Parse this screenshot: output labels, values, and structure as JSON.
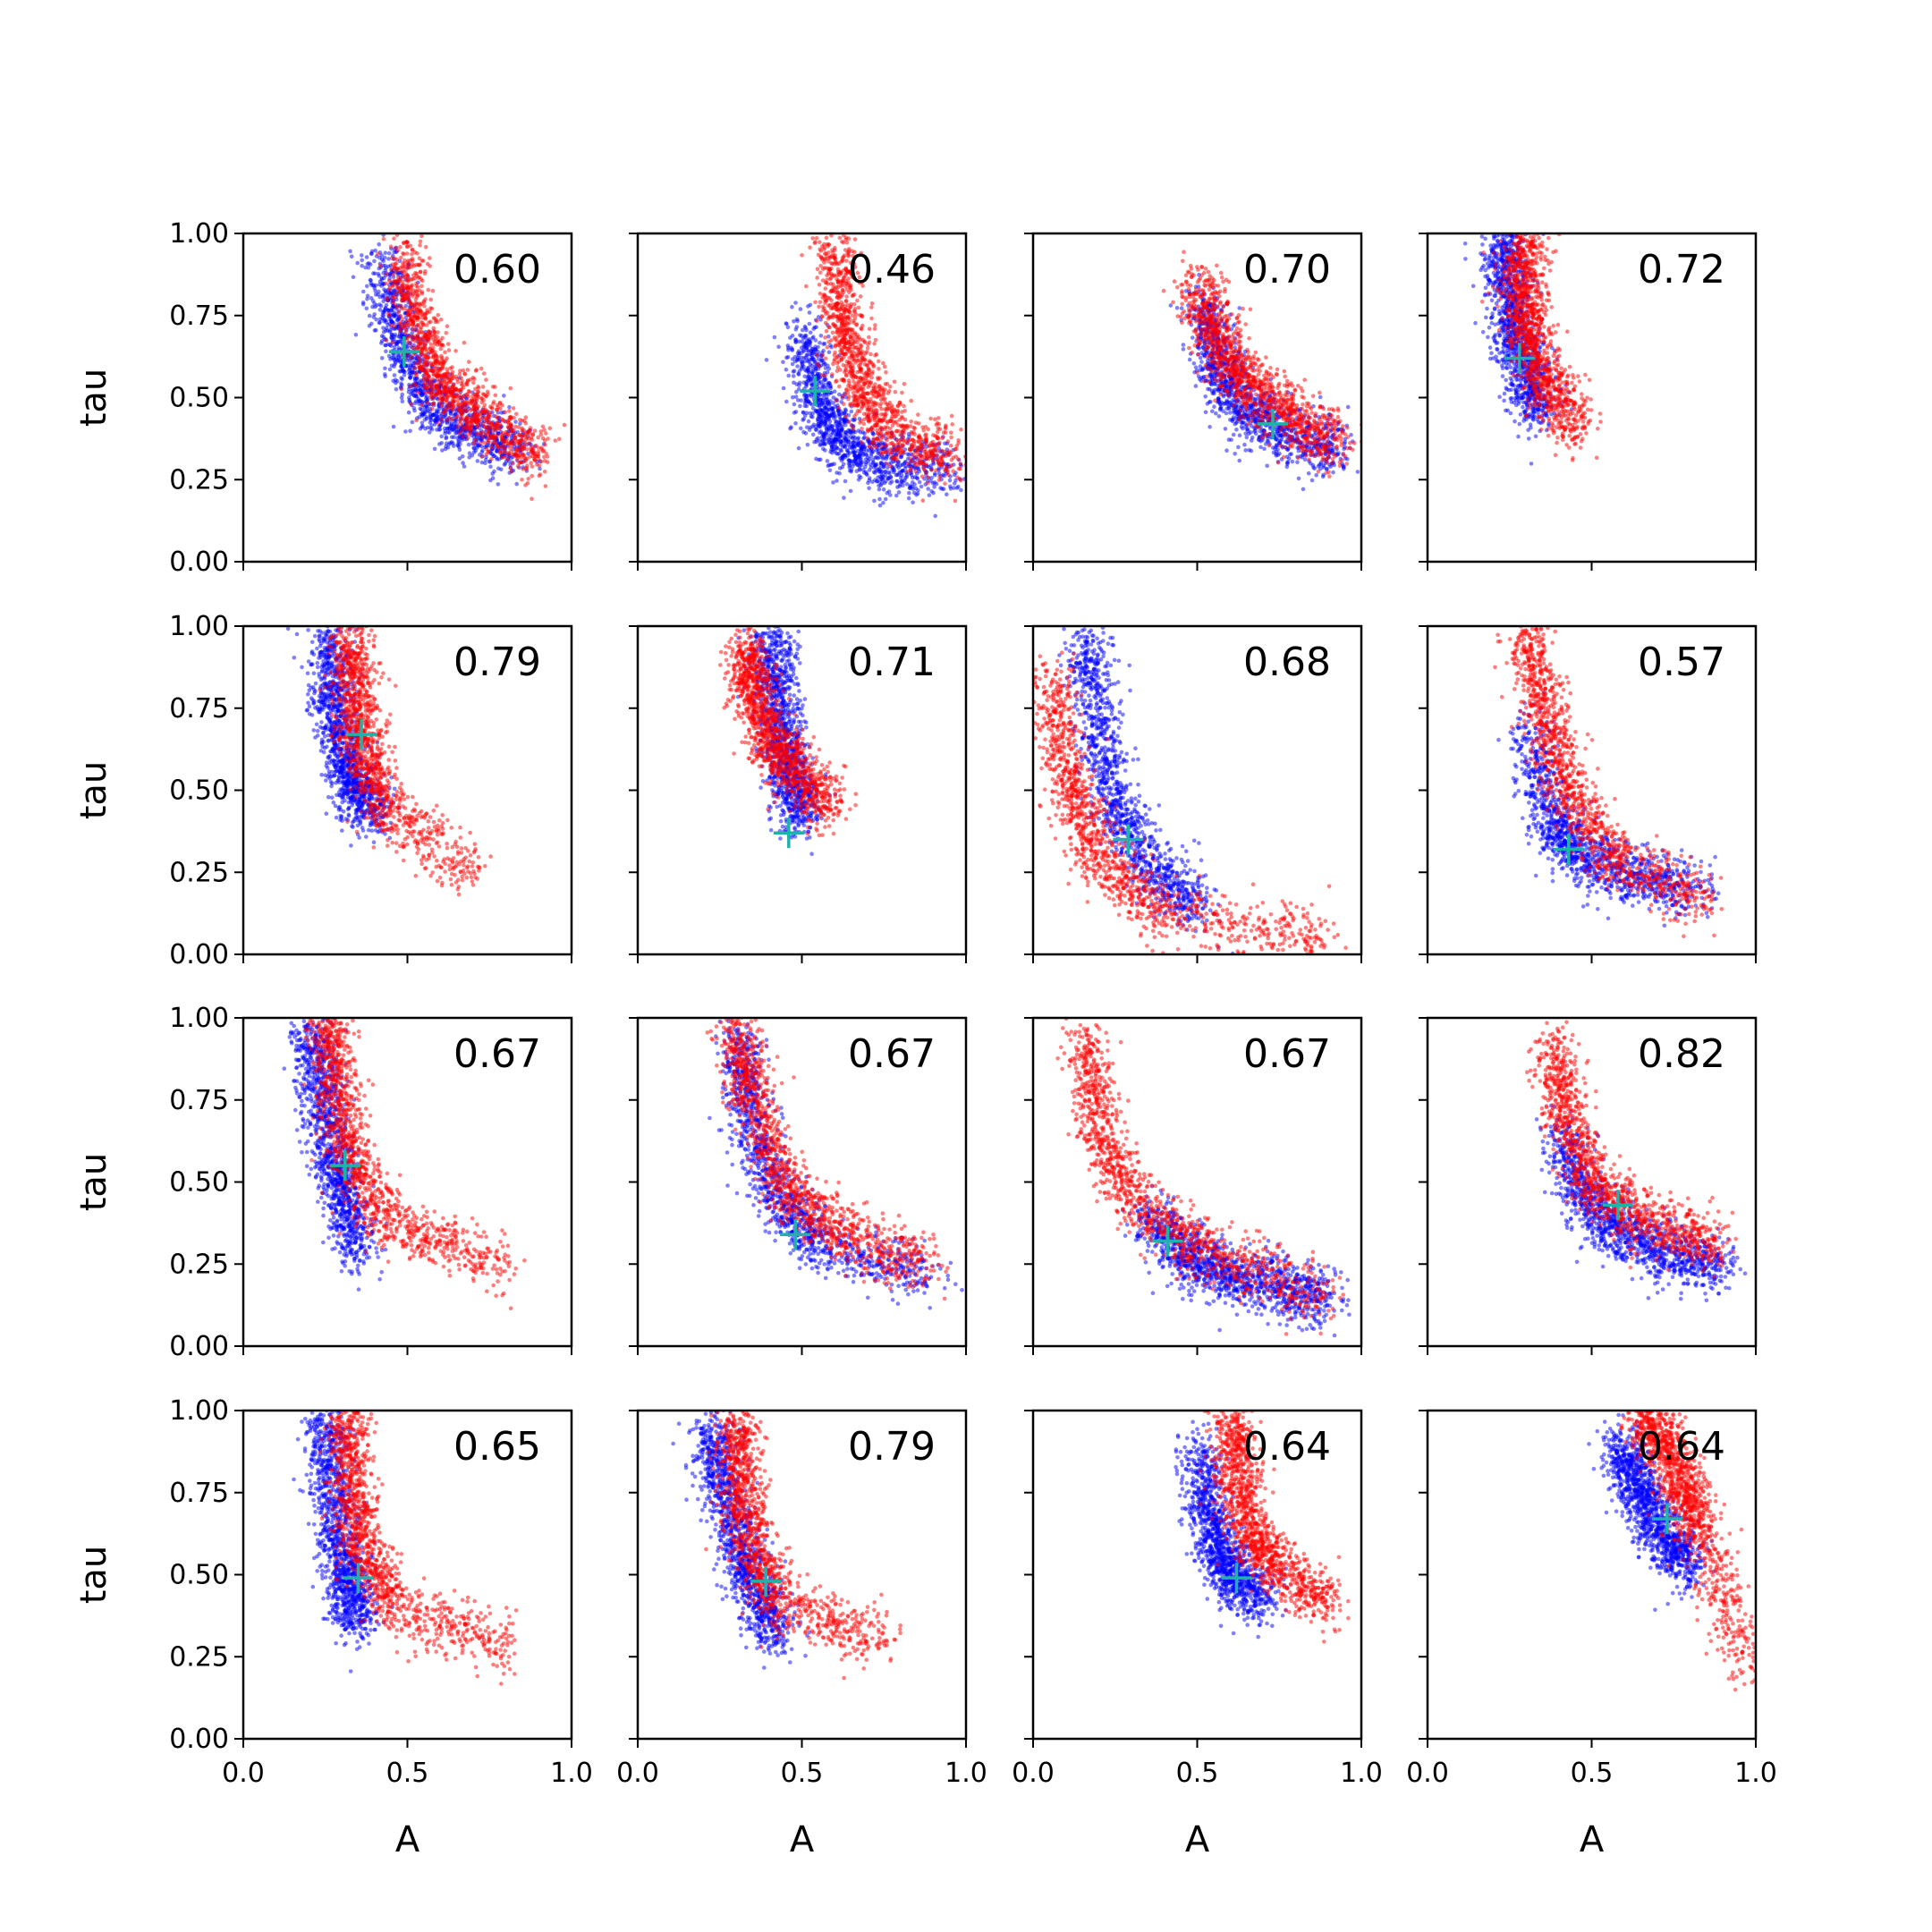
{
  "chart_data": {
    "type": "scatter",
    "layout": {
      "rows": 4,
      "cols": 4
    },
    "xlabel": "A",
    "ylabel": "tau",
    "xlim": [
      0,
      1
    ],
    "ylim": [
      0,
      1
    ],
    "xticks": [
      "0.0",
      "0.5",
      "1.0"
    ],
    "yticks": [
      "0.00",
      "0.25",
      "0.50",
      "0.75",
      "1.00"
    ],
    "grid": false,
    "colors": {
      "series_a": "#0000ff",
      "series_b": "#ff0000",
      "marker": "#20b2aa"
    },
    "panels": [
      {
        "score": "0.60",
        "marker": [
          0.49,
          0.64
        ],
        "curve_a": [
          [
            0.42,
            0.92
          ],
          [
            0.47,
            0.7
          ],
          [
            0.55,
            0.5
          ],
          [
            0.68,
            0.4
          ],
          [
            0.85,
            0.33
          ]
        ],
        "curve_b": [
          [
            0.48,
            0.95
          ],
          [
            0.53,
            0.72
          ],
          [
            0.6,
            0.55
          ],
          [
            0.72,
            0.45
          ],
          [
            0.9,
            0.31
          ]
        ]
      },
      {
        "score": "0.46",
        "marker": [
          0.54,
          0.52
        ],
        "curve_a": [
          [
            0.5,
            0.7
          ],
          [
            0.55,
            0.48
          ],
          [
            0.62,
            0.36
          ],
          [
            0.75,
            0.29
          ],
          [
            0.95,
            0.27
          ]
        ],
        "curve_b": [
          [
            0.6,
            0.97
          ],
          [
            0.62,
            0.75
          ],
          [
            0.67,
            0.55
          ],
          [
            0.77,
            0.4
          ],
          [
            0.96,
            0.31
          ]
        ]
      },
      {
        "score": "0.70",
        "marker": [
          0.73,
          0.42
        ],
        "curve_a": [
          [
            0.52,
            0.78
          ],
          [
            0.56,
            0.6
          ],
          [
            0.62,
            0.48
          ],
          [
            0.75,
            0.4
          ],
          [
            0.93,
            0.33
          ]
        ],
        "curve_b": [
          [
            0.5,
            0.85
          ],
          [
            0.56,
            0.68
          ],
          [
            0.64,
            0.55
          ],
          [
            0.78,
            0.45
          ],
          [
            0.93,
            0.35
          ]
        ]
      },
      {
        "score": "0.72",
        "marker": [
          0.28,
          0.62
        ],
        "curve_a": [
          [
            0.23,
            1.0
          ],
          [
            0.24,
            0.85
          ],
          [
            0.26,
            0.7
          ],
          [
            0.3,
            0.58
          ],
          [
            0.34,
            0.45
          ]
        ],
        "curve_b": [
          [
            0.3,
            1.0
          ],
          [
            0.29,
            0.85
          ],
          [
            0.3,
            0.7
          ],
          [
            0.36,
            0.55
          ],
          [
            0.46,
            0.4
          ]
        ]
      },
      {
        "score": "0.79",
        "marker": [
          0.36,
          0.67
        ],
        "curve_a": [
          [
            0.26,
            0.98
          ],
          [
            0.27,
            0.8
          ],
          [
            0.3,
            0.62
          ],
          [
            0.34,
            0.5
          ],
          [
            0.4,
            0.42
          ]
        ],
        "curve_b": [
          [
            0.32,
            0.98
          ],
          [
            0.34,
            0.82
          ],
          [
            0.36,
            0.65
          ],
          [
            0.42,
            0.45
          ],
          [
            0.7,
            0.25
          ]
        ]
      },
      {
        "score": "0.71",
        "marker": [
          0.46,
          0.37
        ],
        "curve_a": [
          [
            0.4,
            0.98
          ],
          [
            0.42,
            0.82
          ],
          [
            0.44,
            0.65
          ],
          [
            0.47,
            0.52
          ],
          [
            0.5,
            0.42
          ]
        ],
        "curve_b": [
          [
            0.33,
            0.95
          ],
          [
            0.35,
            0.8
          ],
          [
            0.4,
            0.66
          ],
          [
            0.48,
            0.55
          ],
          [
            0.6,
            0.45
          ]
        ]
      },
      {
        "score": "0.68",
        "marker": [
          0.29,
          0.35
        ],
        "curve_a": [
          [
            0.16,
            0.98
          ],
          [
            0.2,
            0.7
          ],
          [
            0.25,
            0.45
          ],
          [
            0.35,
            0.28
          ],
          [
            0.52,
            0.12
          ]
        ],
        "curve_b": [
          [
            0.05,
            0.85
          ],
          [
            0.1,
            0.55
          ],
          [
            0.2,
            0.3
          ],
          [
            0.4,
            0.12
          ],
          [
            0.9,
            0.05
          ]
        ]
      },
      {
        "score": "0.57",
        "marker": [
          0.43,
          0.32
        ],
        "curve_a": [
          [
            0.3,
            0.7
          ],
          [
            0.38,
            0.4
          ],
          [
            0.46,
            0.3
          ],
          [
            0.62,
            0.24
          ],
          [
            0.85,
            0.18
          ]
        ],
        "curve_b": [
          [
            0.3,
            0.98
          ],
          [
            0.36,
            0.75
          ],
          [
            0.42,
            0.5
          ],
          [
            0.55,
            0.3
          ],
          [
            0.84,
            0.16
          ]
        ]
      },
      {
        "score": "0.67",
        "marker": [
          0.31,
          0.55
        ],
        "curve_a": [
          [
            0.2,
            0.98
          ],
          [
            0.23,
            0.8
          ],
          [
            0.27,
            0.6
          ],
          [
            0.3,
            0.45
          ],
          [
            0.35,
            0.28
          ]
        ],
        "curve_b": [
          [
            0.26,
            1.0
          ],
          [
            0.28,
            0.8
          ],
          [
            0.32,
            0.58
          ],
          [
            0.45,
            0.38
          ],
          [
            0.8,
            0.24
          ]
        ]
      },
      {
        "score": "0.67",
        "marker": [
          0.48,
          0.34
        ],
        "curve_a": [
          [
            0.3,
            0.95
          ],
          [
            0.34,
            0.7
          ],
          [
            0.42,
            0.45
          ],
          [
            0.55,
            0.3
          ],
          [
            0.9,
            0.22
          ]
        ],
        "curve_b": [
          [
            0.3,
            0.98
          ],
          [
            0.35,
            0.75
          ],
          [
            0.45,
            0.48
          ],
          [
            0.62,
            0.34
          ],
          [
            0.9,
            0.24
          ]
        ]
      },
      {
        "score": "0.67",
        "marker": [
          0.41,
          0.32
        ],
        "curve_a": [
          [
            0.35,
            0.4
          ],
          [
            0.45,
            0.28
          ],
          [
            0.58,
            0.22
          ],
          [
            0.75,
            0.18
          ],
          [
            0.9,
            0.14
          ]
        ],
        "curve_b": [
          [
            0.15,
            0.95
          ],
          [
            0.2,
            0.65
          ],
          [
            0.32,
            0.42
          ],
          [
            0.55,
            0.28
          ],
          [
            0.9,
            0.14
          ]
        ]
      },
      {
        "score": "0.82",
        "marker": [
          0.58,
          0.43
        ],
        "curve_a": [
          [
            0.4,
            0.65
          ],
          [
            0.48,
            0.45
          ],
          [
            0.58,
            0.34
          ],
          [
            0.72,
            0.28
          ],
          [
            0.9,
            0.24
          ]
        ],
        "curve_b": [
          [
            0.38,
            0.95
          ],
          [
            0.42,
            0.7
          ],
          [
            0.5,
            0.5
          ],
          [
            0.65,
            0.38
          ],
          [
            0.9,
            0.3
          ]
        ]
      },
      {
        "score": "0.65",
        "marker": [
          0.35,
          0.49
        ],
        "curve_a": [
          [
            0.25,
            0.98
          ],
          [
            0.27,
            0.8
          ],
          [
            0.29,
            0.6
          ],
          [
            0.32,
            0.45
          ],
          [
            0.35,
            0.35
          ]
        ],
        "curve_b": [
          [
            0.32,
            1.0
          ],
          [
            0.33,
            0.8
          ],
          [
            0.35,
            0.6
          ],
          [
            0.45,
            0.4
          ],
          [
            0.8,
            0.28
          ]
        ]
      },
      {
        "score": "0.79",
        "marker": [
          0.39,
          0.48
        ],
        "curve_a": [
          [
            0.22,
            0.98
          ],
          [
            0.25,
            0.8
          ],
          [
            0.3,
            0.6
          ],
          [
            0.36,
            0.45
          ],
          [
            0.42,
            0.3
          ]
        ],
        "curve_b": [
          [
            0.3,
            0.98
          ],
          [
            0.31,
            0.8
          ],
          [
            0.34,
            0.6
          ],
          [
            0.42,
            0.42
          ],
          [
            0.75,
            0.3
          ]
        ]
      },
      {
        "score": "0.64",
        "marker": [
          0.62,
          0.49
        ],
        "curve_a": [
          [
            0.5,
            0.9
          ],
          [
            0.53,
            0.7
          ],
          [
            0.57,
            0.56
          ],
          [
            0.62,
            0.48
          ],
          [
            0.7,
            0.44
          ]
        ],
        "curve_b": [
          [
            0.61,
            1.0
          ],
          [
            0.62,
            0.82
          ],
          [
            0.65,
            0.65
          ],
          [
            0.74,
            0.52
          ],
          [
            0.9,
            0.42
          ]
        ]
      },
      {
        "score": "0.64",
        "marker": [
          0.73,
          0.67
        ],
        "curve_a": [
          [
            0.58,
            0.9
          ],
          [
            0.63,
            0.78
          ],
          [
            0.68,
            0.68
          ],
          [
            0.74,
            0.58
          ],
          [
            0.8,
            0.52
          ]
        ],
        "curve_b": [
          [
            0.65,
            1.0
          ],
          [
            0.72,
            0.9
          ],
          [
            0.78,
            0.78
          ],
          [
            0.82,
            0.66
          ],
          [
            0.98,
            0.2
          ]
        ]
      }
    ]
  }
}
